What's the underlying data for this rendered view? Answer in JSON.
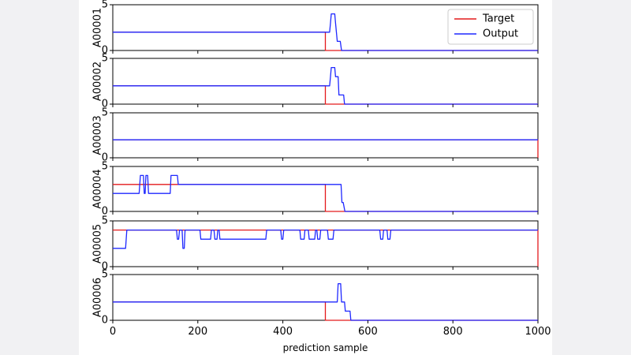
{
  "chart_data": {
    "type": "line",
    "xlabel": "prediction sample",
    "xlim": [
      0,
      1000
    ],
    "ylim": [
      0,
      5
    ],
    "x_ticks": [
      "0",
      "200",
      "400",
      "600",
      "800",
      "1000"
    ],
    "y_ticks": [
      "0",
      "5"
    ],
    "legend": {
      "position": "top-right",
      "entries": [
        "Target",
        "Output"
      ]
    },
    "colors": {
      "Target": "#e31a1c",
      "Output": "#1f28ff"
    },
    "subplots": [
      {
        "ylabel": "A00001",
        "series": [
          {
            "name": "Target",
            "points": [
              [
                0,
                2
              ],
              [
                500,
                2
              ],
              [
                500,
                0
              ],
              [
                1000,
                0
              ]
            ]
          },
          {
            "name": "Output",
            "points": [
              [
                0,
                2
              ],
              [
                510,
                2
              ],
              [
                512,
                3
              ],
              [
                514,
                4
              ],
              [
                522,
                4
              ],
              [
                524,
                3
              ],
              [
                528,
                1
              ],
              [
                535,
                1
              ],
              [
                538,
                0
              ],
              [
                1000,
                0
              ]
            ]
          }
        ]
      },
      {
        "ylabel": "A00002",
        "series": [
          {
            "name": "Target",
            "points": [
              [
                0,
                2
              ],
              [
                500,
                2
              ],
              [
                500,
                0
              ],
              [
                1000,
                0
              ]
            ]
          },
          {
            "name": "Output",
            "points": [
              [
                0,
                2
              ],
              [
                510,
                2
              ],
              [
                512,
                3
              ],
              [
                514,
                4
              ],
              [
                522,
                4
              ],
              [
                524,
                3
              ],
              [
                530,
                3
              ],
              [
                532,
                1
              ],
              [
                543,
                1
              ],
              [
                545,
                0
              ],
              [
                1000,
                0
              ]
            ]
          }
        ]
      },
      {
        "ylabel": "A00003",
        "series": [
          {
            "name": "Target",
            "points": [
              [
                0,
                2
              ],
              [
                1000,
                2
              ],
              [
                1000,
                0
              ]
            ]
          },
          {
            "name": "Output",
            "points": [
              [
                0,
                2
              ],
              [
                1000,
                2
              ]
            ]
          }
        ]
      },
      {
        "ylabel": "A00004",
        "series": [
          {
            "name": "Target",
            "points": [
              [
                0,
                3
              ],
              [
                500,
                3
              ],
              [
                500,
                0
              ],
              [
                1000,
                0
              ]
            ]
          },
          {
            "name": "Output",
            "points": [
              [
                0,
                2
              ],
              [
                62,
                2
              ],
              [
                65,
                4
              ],
              [
                72,
                4
              ],
              [
                74,
                2
              ],
              [
                76,
                2
              ],
              [
                78,
                4
              ],
              [
                82,
                4
              ],
              [
                84,
                2
              ],
              [
                135,
                2
              ],
              [
                137,
                4
              ],
              [
                152,
                4
              ],
              [
                154,
                3
              ],
              [
                537,
                3
              ],
              [
                539,
                1
              ],
              [
                542,
                1
              ],
              [
                546,
                0
              ],
              [
                1000,
                0
              ]
            ]
          }
        ]
      },
      {
        "ylabel": "A00005",
        "series": [
          {
            "name": "Target",
            "points": [
              [
                0,
                4
              ],
              [
                1000,
                4
              ],
              [
                1000,
                0
              ]
            ]
          },
          {
            "name": "Output",
            "points": [
              [
                0,
                2
              ],
              [
                30,
                2
              ],
              [
                33,
                4
              ],
              [
                150,
                4
              ],
              [
                152,
                3
              ],
              [
                155,
                3
              ],
              [
                157,
                4
              ],
              [
                163,
                4
              ],
              [
                165,
                2
              ],
              [
                168,
                2
              ],
              [
                170,
                4
              ],
              [
                205,
                4
              ],
              [
                207,
                3
              ],
              [
                230,
                3
              ],
              [
                232,
                4
              ],
              [
                238,
                4
              ],
              [
                240,
                3
              ],
              [
                245,
                3
              ],
              [
                247,
                4
              ],
              [
                250,
                4
              ],
              [
                252,
                3
              ],
              [
                360,
                3
              ],
              [
                362,
                4
              ],
              [
                395,
                4
              ],
              [
                397,
                3
              ],
              [
                400,
                3
              ],
              [
                402,
                4
              ],
              [
                440,
                4
              ],
              [
                442,
                3
              ],
              [
                450,
                3
              ],
              [
                452,
                4
              ],
              [
                460,
                4
              ],
              [
                462,
                3
              ],
              [
                475,
                3
              ],
              [
                477,
                4
              ],
              [
                480,
                4
              ],
              [
                482,
                3
              ],
              [
                487,
                3
              ],
              [
                489,
                4
              ],
              [
                505,
                4
              ],
              [
                507,
                3
              ],
              [
                518,
                3
              ],
              [
                520,
                4
              ],
              [
                628,
                4
              ],
              [
                630,
                3
              ],
              [
                635,
                3
              ],
              [
                637,
                4
              ],
              [
                645,
                4
              ],
              [
                647,
                3
              ],
              [
                652,
                3
              ],
              [
                654,
                4
              ],
              [
                1000,
                4
              ]
            ]
          }
        ]
      },
      {
        "ylabel": "A00006",
        "series": [
          {
            "name": "Target",
            "points": [
              [
                0,
                2
              ],
              [
                500,
                2
              ],
              [
                500,
                0
              ],
              [
                1000,
                0
              ]
            ]
          },
          {
            "name": "Output",
            "points": [
              [
                0,
                2
              ],
              [
                528,
                2
              ],
              [
                530,
                4
              ],
              [
                536,
                4
              ],
              [
                538,
                2
              ],
              [
                545,
                2
              ],
              [
                547,
                1
              ],
              [
                558,
                1
              ],
              [
                560,
                0
              ],
              [
                1000,
                0
              ]
            ]
          }
        ]
      }
    ]
  }
}
